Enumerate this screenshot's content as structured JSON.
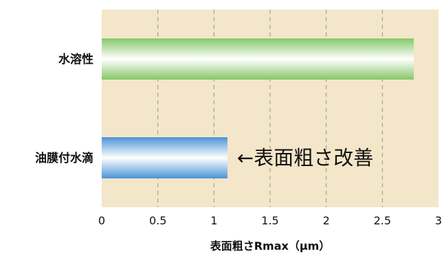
{
  "chart_data": {
    "type": "bar",
    "orientation": "horizontal",
    "title": "",
    "categories": [
      "水溶性",
      "油膜付水滴"
    ],
    "values": [
      2.78,
      1.12
    ],
    "xlabel": "表面粗さRmax（μm）",
    "ylabel": "",
    "xlim": [
      0,
      3
    ],
    "xticks": [
      "0",
      "0.5",
      "1",
      "1.5",
      "2",
      "2.5",
      "3"
    ],
    "xtick_values": [
      0,
      0.5,
      1,
      1.5,
      2,
      2.5,
      3
    ],
    "grid": "vertical-dashed",
    "bar_colors": [
      "#86c86a",
      "#4b93d6"
    ],
    "background_color": "#f3e6c9",
    "annotation": {
      "text": "←表面粗さ改善",
      "target_category": "油膜付水滴"
    }
  }
}
